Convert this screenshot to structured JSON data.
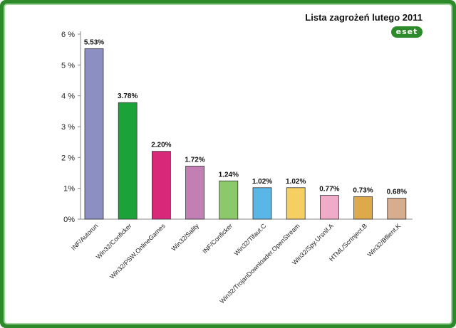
{
  "chart_data": {
    "type": "bar",
    "title": "Lista zagrożeń lutego 2011",
    "logo_text": "eset",
    "categories": [
      "INF/Autorun",
      "Win32/Conficker",
      "Win32/PSW.OnlineGames",
      "Win32/Sality",
      "INF/Conficker",
      "Win32/Tifaut.C",
      "Win32/TrojanDownloader.OpenStream",
      "Win32/Spy.Ursnif.A",
      "HTML/ScrInject.B",
      "Win32/Bflient.K"
    ],
    "values": [
      5.53,
      3.78,
      2.2,
      1.72,
      1.24,
      1.02,
      1.02,
      0.77,
      0.73,
      0.68
    ],
    "value_labels": [
      "5.53%",
      "3.78%",
      "2.20%",
      "1.72%",
      "1.24%",
      "1.02%",
      "1.02%",
      "0.77%",
      "0.73%",
      "0.68%"
    ],
    "colors": [
      "#8b8fc2",
      "#1ba33a",
      "#d7287a",
      "#c27fb4",
      "#8cc96b",
      "#5ab6e6",
      "#f6cf63",
      "#f0abc9",
      "#dea94a",
      "#d6ad8e"
    ],
    "y_ticks": [
      0,
      1,
      2,
      3,
      4,
      5,
      6
    ],
    "y_tick_labels": [
      "0%",
      "1%",
      "2 %",
      "3 %",
      "4 %",
      "5 %",
      "6 %"
    ],
    "ylim": [
      0,
      6
    ],
    "grid": false
  }
}
